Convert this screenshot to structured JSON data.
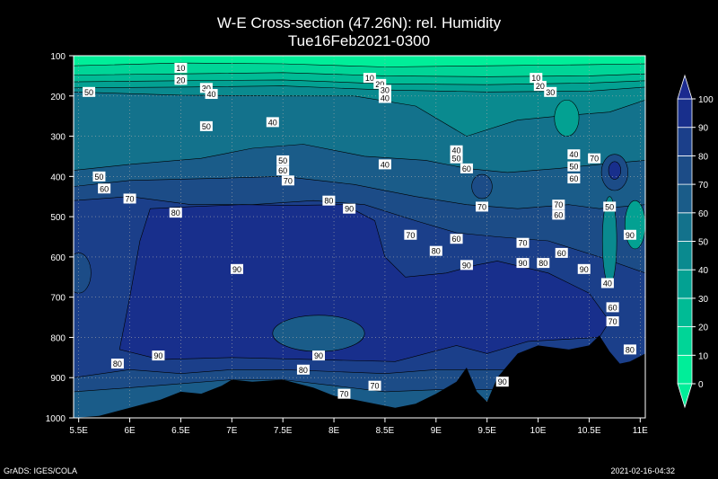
{
  "header": {
    "title": "W-E Cross-section (47.26N): rel. Humidity",
    "subtitle": "Tue16Feb2021-0300"
  },
  "footer": {
    "left": "GrADS: IGES/COLA",
    "right": "2021-02-16-04:32"
  },
  "colors": {
    "lev0": "#00ee99",
    "lev10": "#00d597",
    "lev20": "#00bb95",
    "lev30": "#03a192",
    "lev40": "#0a8a8f",
    "lev50": "#13728c",
    "lev60": "#1a5c89",
    "lev70": "#1c4c87",
    "lev80": "#1b3f8a",
    "lev90": "#182f8c",
    "terrain": "#000000"
  },
  "chart_data": {
    "type": "contour",
    "title": "W-E Cross-section (47.26N): rel. Humidity",
    "subtitle": "Tue16Feb2021-0300",
    "x_ticks": [
      "5.5E",
      "6E",
      "6.5E",
      "7E",
      "7.5E",
      "8E",
      "8.5E",
      "9E",
      "9.5E",
      "10E",
      "10.5E",
      "11E"
    ],
    "x_tick_values": [
      5.5,
      6,
      6.5,
      7,
      7.5,
      8,
      8.5,
      9,
      9.5,
      10,
      10.5,
      11
    ],
    "xlim": [
      5.45,
      11.05
    ],
    "y_ticks": [
      "100",
      "200",
      "300",
      "400",
      "500",
      "600",
      "700",
      "800",
      "900",
      "1000"
    ],
    "y_tick_values": [
      100,
      200,
      300,
      400,
      500,
      600,
      700,
      800,
      900,
      1000
    ],
    "ylim": [
      1000,
      100
    ],
    "colorbar": {
      "levels": [
        0,
        10,
        20,
        30,
        40,
        50,
        60,
        70,
        80,
        90,
        100
      ],
      "labels": [
        "0",
        "10",
        "20",
        "30",
        "40",
        "50",
        "60",
        "70",
        "80",
        "90",
        "100"
      ]
    },
    "terrain": [
      {
        "x": 5.45,
        "p": 1000
      },
      {
        "x": 5.7,
        "p": 995
      },
      {
        "x": 6,
        "p": 975
      },
      {
        "x": 6.3,
        "p": 955
      },
      {
        "x": 6.5,
        "p": 935
      },
      {
        "x": 6.7,
        "p": 940
      },
      {
        "x": 6.9,
        "p": 920
      },
      {
        "x": 7,
        "p": 905
      },
      {
        "x": 7.2,
        "p": 910
      },
      {
        "x": 7.5,
        "p": 905
      },
      {
        "x": 7.8,
        "p": 925
      },
      {
        "x": 8,
        "p": 945
      },
      {
        "x": 8.2,
        "p": 955
      },
      {
        "x": 8.4,
        "p": 965
      },
      {
        "x": 8.6,
        "p": 975
      },
      {
        "x": 8.8,
        "p": 965
      },
      {
        "x": 9,
        "p": 940
      },
      {
        "x": 9.2,
        "p": 910
      },
      {
        "x": 9.3,
        "p": 875
      },
      {
        "x": 9.4,
        "p": 935
      },
      {
        "x": 9.5,
        "p": 960
      },
      {
        "x": 9.6,
        "p": 900
      },
      {
        "x": 9.7,
        "p": 870
      },
      {
        "x": 9.8,
        "p": 840
      },
      {
        "x": 10,
        "p": 820
      },
      {
        "x": 10.3,
        "p": 830
      },
      {
        "x": 10.5,
        "p": 820
      },
      {
        "x": 10.6,
        "p": 795
      },
      {
        "x": 10.7,
        "p": 835
      },
      {
        "x": 10.8,
        "p": 865
      },
      {
        "x": 10.9,
        "p": 860
      },
      {
        "x": 11.05,
        "p": 840
      }
    ],
    "contour_labels": [
      {
        "x": 6.5,
        "p": 130,
        "v": "10"
      },
      {
        "x": 6.5,
        "p": 160,
        "v": "20"
      },
      {
        "x": 6.75,
        "p": 180,
        "v": "30"
      },
      {
        "x": 6.8,
        "p": 195,
        "v": "40"
      },
      {
        "x": 5.6,
        "p": 190,
        "v": "50"
      },
      {
        "x": 8.35,
        "p": 155,
        "v": "10"
      },
      {
        "x": 8.45,
        "p": 170,
        "v": "20"
      },
      {
        "x": 8.5,
        "p": 185,
        "v": "30"
      },
      {
        "x": 8.5,
        "p": 205,
        "v": "40"
      },
      {
        "x": 9.98,
        "p": 155,
        "v": "10"
      },
      {
        "x": 10.02,
        "p": 175,
        "v": "20"
      },
      {
        "x": 10.12,
        "p": 190,
        "v": "30"
      },
      {
        "x": 6.75,
        "p": 275,
        "v": "50"
      },
      {
        "x": 7.4,
        "p": 265,
        "v": "40"
      },
      {
        "x": 7.5,
        "p": 360,
        "v": "50"
      },
      {
        "x": 7.5,
        "p": 385,
        "v": "60"
      },
      {
        "x": 7.55,
        "p": 410,
        "v": "70"
      },
      {
        "x": 8.5,
        "p": 370,
        "v": "40"
      },
      {
        "x": 9.2,
        "p": 335,
        "v": "40"
      },
      {
        "x": 9.2,
        "p": 355,
        "v": "50"
      },
      {
        "x": 9.3,
        "p": 380,
        "v": "60"
      },
      {
        "x": 5.7,
        "p": 400,
        "v": "50"
      },
      {
        "x": 5.75,
        "p": 430,
        "v": "60"
      },
      {
        "x": 6,
        "p": 455,
        "v": "70"
      },
      {
        "x": 6.45,
        "p": 490,
        "v": "80"
      },
      {
        "x": 7.95,
        "p": 460,
        "v": "80"
      },
      {
        "x": 8.15,
        "p": 480,
        "v": "90"
      },
      {
        "x": 10.35,
        "p": 345,
        "v": "40"
      },
      {
        "x": 10.35,
        "p": 375,
        "v": "50"
      },
      {
        "x": 10.35,
        "p": 405,
        "v": "60"
      },
      {
        "x": 10.55,
        "p": 355,
        "v": "70"
      },
      {
        "x": 9.45,
        "p": 475,
        "v": "70"
      },
      {
        "x": 10.2,
        "p": 470,
        "v": "70"
      },
      {
        "x": 10.2,
        "p": 495,
        "v": "60"
      },
      {
        "x": 10.7,
        "p": 475,
        "v": "50"
      },
      {
        "x": 8.75,
        "p": 545,
        "v": "70"
      },
      {
        "x": 9.2,
        "p": 555,
        "v": "60"
      },
      {
        "x": 9.85,
        "p": 565,
        "v": "70"
      },
      {
        "x": 9,
        "p": 585,
        "v": "80"
      },
      {
        "x": 10.23,
        "p": 590,
        "v": "60"
      },
      {
        "x": 10.05,
        "p": 615,
        "v": "80"
      },
      {
        "x": 9.3,
        "p": 620,
        "v": "90"
      },
      {
        "x": 9.85,
        "p": 615,
        "v": "90"
      },
      {
        "x": 10.45,
        "p": 630,
        "v": "90"
      },
      {
        "x": 10.9,
        "p": 545,
        "v": "90"
      },
      {
        "x": 10.68,
        "p": 665,
        "v": "40"
      },
      {
        "x": 10.73,
        "p": 725,
        "v": "60"
      },
      {
        "x": 10.73,
        "p": 760,
        "v": "70"
      },
      {
        "x": 10.9,
        "p": 830,
        "v": "80"
      },
      {
        "x": 7.05,
        "p": 630,
        "v": "90"
      },
      {
        "x": 6.28,
        "p": 845,
        "v": "90"
      },
      {
        "x": 5.88,
        "p": 865,
        "v": "80"
      },
      {
        "x": 7.7,
        "p": 880,
        "v": "80"
      },
      {
        "x": 8.4,
        "p": 920,
        "v": "70"
      },
      {
        "x": 8.1,
        "p": 940,
        "v": "70"
      },
      {
        "x": 7.85,
        "p": 845,
        "v": "90"
      },
      {
        "x": 9.65,
        "p": 910,
        "v": "90"
      }
    ]
  }
}
